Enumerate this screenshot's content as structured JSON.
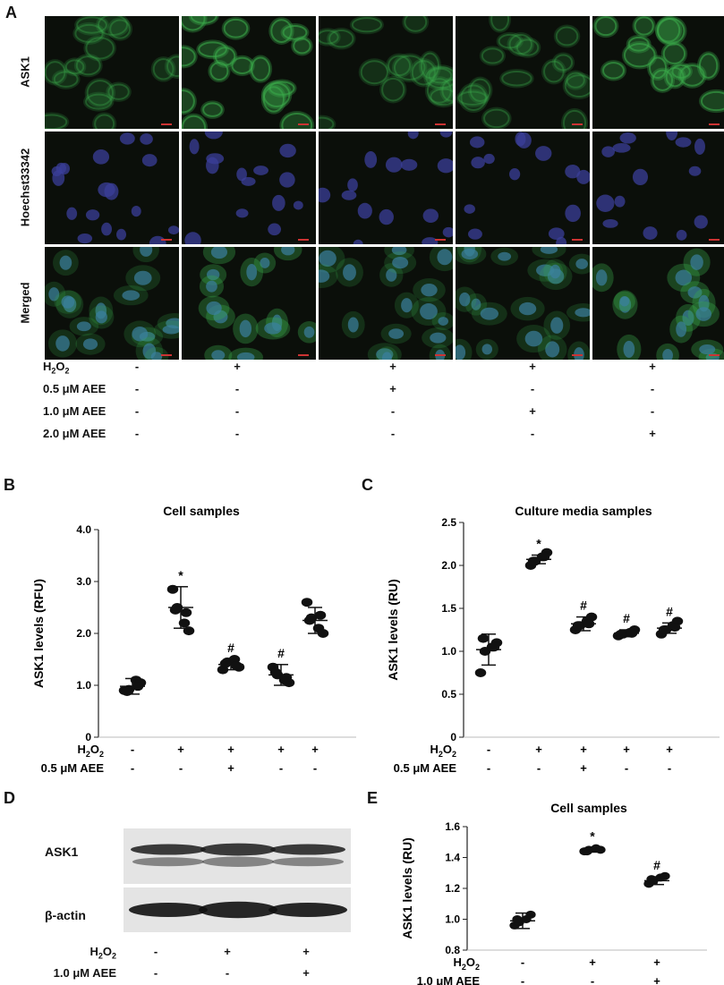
{
  "panels": {
    "A": "A",
    "B": "B",
    "C": "C",
    "D": "D",
    "E": "E"
  },
  "panel_a": {
    "row_labels": [
      "ASK1",
      "Hoechst33342",
      "Merged"
    ],
    "conditions": [
      {
        "label": "H2O2",
        "symbols": [
          "-",
          "+",
          "+",
          "+",
          "+"
        ]
      },
      {
        "label": "0.5 μM AEE",
        "symbols": [
          "-",
          "-",
          "+",
          "-",
          "-"
        ]
      },
      {
        "label": "1.0 μM AEE",
        "symbols": [
          "-",
          "-",
          "-",
          "+",
          "-"
        ]
      },
      {
        "label": "2.0 μM AEE",
        "symbols": [
          "-",
          "-",
          "-",
          "-",
          "+"
        ]
      }
    ],
    "colors": {
      "background": "#0b0f0a",
      "ask1": "#3aa84a",
      "hoechst": "#3b3f9a"
    }
  },
  "chart_data": [
    {
      "id": "B",
      "type": "scatter",
      "title": "Cell samples",
      "ylabel": "ASK1 levels (RFU)",
      "ylim": [
        0,
        4.0
      ],
      "yticks": [
        "0",
        "1.0",
        "2.0",
        "3.0",
        "4.0"
      ],
      "categories": [
        "1",
        "2",
        "3",
        "4",
        "5"
      ],
      "points": [
        [
          0.9,
          0.92,
          1.1,
          1.05,
          0.88,
          0.98
        ],
        [
          2.85,
          2.5,
          2.2,
          2.05,
          2.45,
          2.4
        ],
        [
          1.3,
          1.45,
          1.5,
          1.35,
          1.42,
          1.38
        ],
        [
          1.35,
          1.2,
          1.1,
          1.05,
          1.25,
          1.15
        ],
        [
          2.6,
          2.3,
          2.1,
          2.0,
          2.25,
          2.35
        ]
      ],
      "means": [
        0.98,
        2.5,
        1.4,
        1.2,
        2.25
      ],
      "errors": [
        0.15,
        0.4,
        0.1,
        0.2,
        0.25
      ],
      "annotations": [
        "",
        "*",
        "#",
        "#",
        ""
      ],
      "conditions": [
        {
          "label": "H2O2",
          "symbols": [
            "-",
            "+",
            "+",
            "+",
            "+"
          ]
        },
        {
          "label": "0.5 μM AEE",
          "symbols": [
            "-",
            "-",
            "+",
            "-",
            "-"
          ]
        },
        {
          "label": "1.0 μM AEE",
          "symbols": [
            "-",
            "-",
            "-",
            "+",
            "-"
          ]
        },
        {
          "label": "2.0 μM AEE",
          "symbols": [
            "-",
            "-",
            "-",
            "-",
            "+"
          ]
        }
      ]
    },
    {
      "id": "C",
      "type": "scatter",
      "title": "Culture media samples",
      "ylabel": "ASK1 levels (RU)",
      "ylim": [
        0,
        2.5
      ],
      "yticks": [
        "0",
        "0.5",
        "1.0",
        "1.5",
        "2.0",
        "2.5"
      ],
      "categories": [
        "1",
        "2",
        "3",
        "4",
        "5"
      ],
      "points": [
        [
          0.75,
          1.0,
          1.05,
          1.1,
          1.15,
          1.05
        ],
        [
          2.0,
          2.05,
          2.1,
          2.15,
          2.05,
          2.1
        ],
        [
          1.25,
          1.3,
          1.35,
          1.4,
          1.3,
          1.32
        ],
        [
          1.18,
          1.2,
          1.22,
          1.25,
          1.2,
          1.21
        ],
        [
          1.2,
          1.25,
          1.3,
          1.35,
          1.25,
          1.28
        ]
      ],
      "means": [
        1.02,
        2.07,
        1.32,
        1.21,
        1.27
      ],
      "errors": [
        0.18,
        0.05,
        0.08,
        0.04,
        0.06
      ],
      "annotations": [
        "",
        "*",
        "#",
        "#",
        "#"
      ],
      "conditions": [
        {
          "label": "H2O2",
          "symbols": [
            "-",
            "+",
            "+",
            "+",
            "+"
          ]
        },
        {
          "label": "0.5 μM AEE",
          "symbols": [
            "-",
            "-",
            "+",
            "-",
            "-"
          ]
        },
        {
          "label": "1.0 μM AEE",
          "symbols": [
            "-",
            "-",
            "-",
            "+",
            "-"
          ]
        },
        {
          "label": "2.0 μM AEE",
          "symbols": [
            "-",
            "-",
            "-",
            "-",
            "+"
          ]
        }
      ]
    },
    {
      "id": "E",
      "type": "scatter",
      "title": "Cell samples",
      "ylabel": "ASK1 levels (RU)",
      "ylim": [
        0.8,
        1.6
      ],
      "yticks": [
        "0.8",
        "1.0",
        "1.2",
        "1.4",
        "1.6"
      ],
      "categories": [
        "1",
        "2",
        "3"
      ],
      "points": [
        [
          0.96,
          0.98,
          1.0,
          1.03,
          1.0
        ],
        [
          1.44,
          1.45,
          1.46,
          1.45,
          1.44
        ],
        [
          1.23,
          1.25,
          1.27,
          1.28,
          1.26
        ]
      ],
      "means": [
        0.99,
        1.45,
        1.25
      ],
      "errors": [
        0.05,
        0.015,
        0.025
      ],
      "annotations": [
        "",
        "*",
        "#"
      ],
      "conditions": [
        {
          "label": "H2O2",
          "symbols": [
            "-",
            "+",
            "+"
          ]
        },
        {
          "label": "1.0 μM AEE",
          "symbols": [
            "-",
            "-",
            "+"
          ]
        }
      ]
    }
  ],
  "panel_d": {
    "bands": [
      "ASK1",
      "β-actin"
    ],
    "conditions": [
      {
        "label": "H2O2",
        "symbols": [
          "-",
          "+",
          "+"
        ]
      },
      {
        "label": "1.0 μM AEE",
        "symbols": [
          "-",
          "-",
          "+"
        ]
      }
    ]
  }
}
